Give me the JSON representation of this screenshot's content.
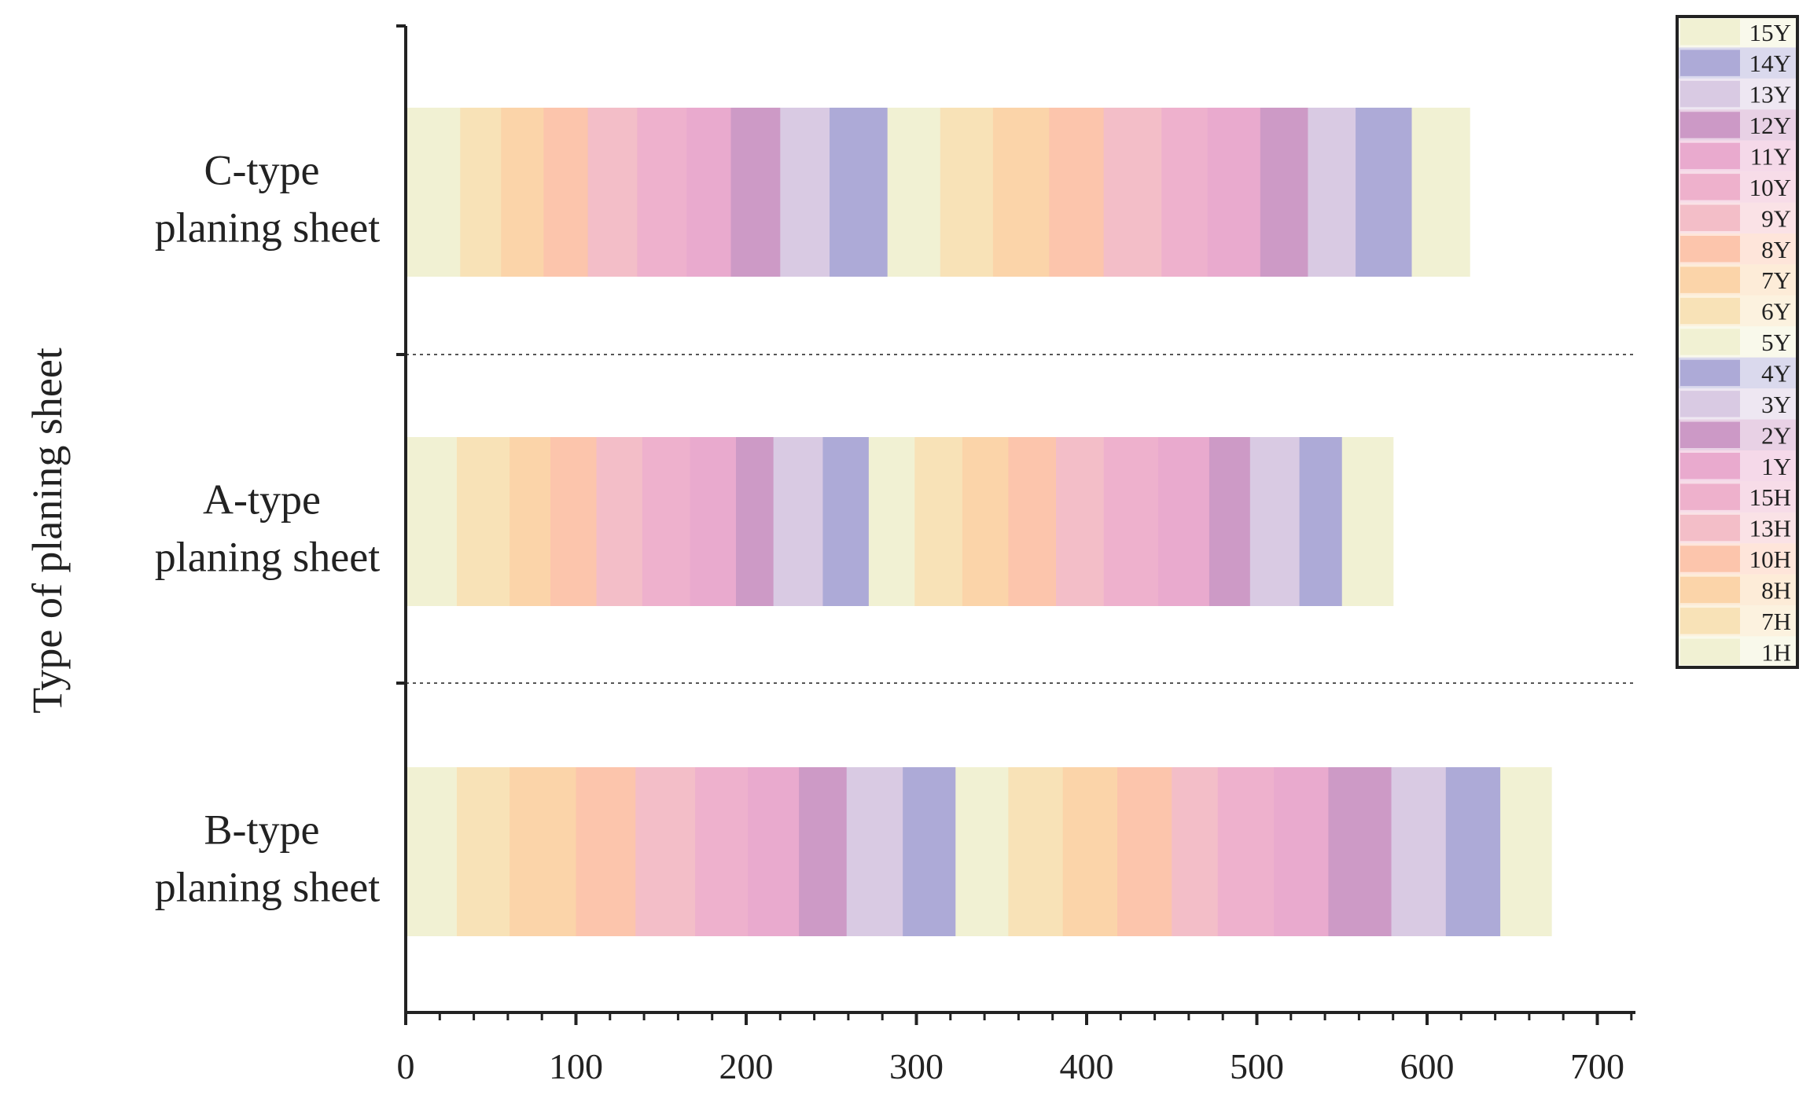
{
  "chart_data": {
    "type": "bar",
    "orientation": "horizontal",
    "stacked": true,
    "ylabel": "Type of planing sheet",
    "xlabel": "",
    "xlim": [
      0,
      720
    ],
    "xticks": [
      0,
      100,
      200,
      300,
      400,
      500,
      600,
      700
    ],
    "xtick_labels": [
      "0",
      "100",
      "200",
      "300",
      "400",
      "500",
      "600",
      "700"
    ],
    "legend_position": "right",
    "legend_order": [
      "15Y",
      "14Y",
      "13Y",
      "12Y",
      "11Y",
      "10Y",
      "9Y",
      "8Y",
      "7Y",
      "6Y",
      "5Y",
      "4Y",
      "3Y",
      "2Y",
      "1Y",
      "15H",
      "13H",
      "10H",
      "8H",
      "7H",
      "1H"
    ],
    "categories": [
      {
        "label_line1": "C-type",
        "label_line2": "planing sheet",
        "boundaries": [
          0,
          32,
          56,
          81,
          107,
          136,
          165,
          191,
          220,
          249,
          283,
          314,
          345,
          378,
          410,
          444,
          471,
          502,
          530,
          558,
          591,
          625
        ]
      },
      {
        "label_line1": "A-type",
        "label_line2": "planing sheet",
        "boundaries": [
          0,
          30,
          61,
          85,
          112,
          139,
          167,
          194,
          216,
          245,
          272,
          299,
          327,
          354,
          382,
          410,
          442,
          472,
          496,
          525,
          550,
          580
        ]
      },
      {
        "label_line1": "B-type",
        "label_line2": "planing sheet",
        "boundaries": [
          0,
          30,
          61,
          100,
          135,
          170,
          201,
          231,
          259,
          292,
          323,
          354,
          386,
          418,
          450,
          477,
          510,
          542,
          579,
          611,
          643,
          673
        ]
      }
    ],
    "segment_order": [
      "1H",
      "7H",
      "8H",
      "10H",
      "13H",
      "15H",
      "1Y",
      "2Y",
      "3Y",
      "4Y",
      "5Y",
      "6Y",
      "7Y",
      "8Y",
      "9Y",
      "10Y",
      "11Y",
      "12Y",
      "13Y",
      "14Y",
      "15Y"
    ],
    "colors": {
      "1H": "#f1f1d3",
      "7H": "#f8e2b7",
      "8H": "#fbd4a9",
      "10H": "#fcc5ac",
      "13H": "#f3bec8",
      "15H": "#eeb1cd",
      "1Y": "#e9aace",
      "2Y": "#cd9ac6",
      "3Y": "#d9cae3",
      "4Y": "#adaad7",
      "5Y": "#f1f1d3",
      "6Y": "#f8e2b7",
      "7Y": "#fbd4a9",
      "8Y": "#fcc5ac",
      "9Y": "#f3bec8",
      "10Y": "#eeb1cd",
      "11Y": "#e9aace",
      "12Y": "#cd9ac6",
      "13Y": "#d9cae3",
      "14Y": "#adaad7",
      "15Y": "#f1f1d3"
    }
  }
}
